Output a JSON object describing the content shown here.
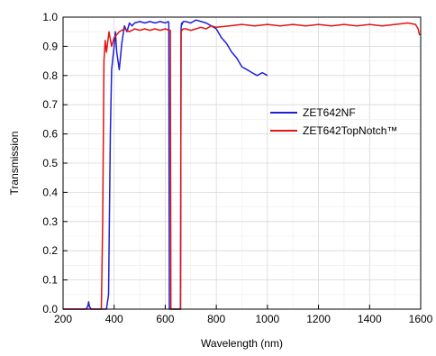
{
  "chart_data": {
    "type": "line",
    "xlabel": "Wavelength (nm)",
    "ylabel": "Transmission",
    "xlim": [
      200,
      1600
    ],
    "ylim": [
      0.0,
      1.0
    ],
    "xticks": [
      200,
      400,
      600,
      800,
      1000,
      1200,
      1400,
      1600
    ],
    "xtick_labels": [
      "200",
      "400",
      "600",
      "800",
      "1000",
      "1200",
      "1400",
      "1600"
    ],
    "yticks": [
      0.0,
      0.1,
      0.2,
      0.3,
      0.4,
      0.5,
      0.6,
      0.7,
      0.8,
      0.9,
      1.0
    ],
    "ytick_labels": [
      "0.0",
      "0.1",
      "0.2",
      "0.3",
      "0.4",
      "0.5",
      "0.6",
      "0.7",
      "0.8",
      "0.9",
      "1.0"
    ],
    "grid": true,
    "legend_position": "center-right",
    "series": [
      {
        "name": "ZET642NF",
        "color": "#1f1fd6",
        "x": [
          200,
          290,
          297,
          300,
          303,
          310,
          370,
          378,
          385,
          390,
          395,
          400,
          405,
          410,
          420,
          430,
          440,
          450,
          460,
          470,
          480,
          500,
          520,
          540,
          560,
          580,
          600,
          612,
          614,
          616,
          618,
          620,
          622,
          624,
          626,
          628,
          630,
          632,
          634,
          636,
          638,
          640,
          642,
          644,
          646,
          648,
          650,
          652,
          654,
          656,
          658,
          660,
          662,
          664,
          666,
          670,
          680,
          700,
          720,
          740,
          760,
          780,
          800,
          820,
          840,
          860,
          880,
          900,
          920,
          940,
          960,
          980,
          1000
        ],
        "y": [
          0.0,
          0.0,
          0.01,
          0.025,
          0.01,
          0.0,
          0.0,
          0.05,
          0.6,
          0.82,
          0.86,
          0.9,
          0.95,
          0.88,
          0.82,
          0.91,
          0.97,
          0.95,
          0.98,
          0.97,
          0.98,
          0.985,
          0.98,
          0.985,
          0.98,
          0.985,
          0.98,
          0.985,
          0.98,
          0.0,
          0.0,
          0.0,
          0.0,
          0.0,
          0.0,
          0.0,
          0.0,
          0.0,
          0.0,
          0.0,
          0.0,
          0.0,
          0.0,
          0.0,
          0.0,
          0.0,
          0.0,
          0.0,
          0.0,
          0.0,
          0.0,
          0.0,
          0.96,
          0.98,
          0.975,
          0.985,
          0.985,
          0.98,
          0.99,
          0.985,
          0.98,
          0.97,
          0.96,
          0.93,
          0.91,
          0.88,
          0.86,
          0.83,
          0.82,
          0.81,
          0.8,
          0.81,
          0.8
        ]
      },
      {
        "name": "ZET642TopNotch™",
        "color": "#e01515",
        "x": [
          200,
          340,
          350,
          355,
          360,
          365,
          370,
          380,
          390,
          400,
          420,
          440,
          460,
          480,
          500,
          520,
          540,
          560,
          580,
          600,
          615,
          620,
          622,
          624,
          626,
          628,
          630,
          632,
          634,
          636,
          638,
          640,
          642,
          644,
          646,
          648,
          650,
          652,
          654,
          656,
          658,
          660,
          662,
          665,
          670,
          680,
          700,
          720,
          740,
          760,
          780,
          800,
          850,
          900,
          950,
          1000,
          1050,
          1100,
          1150,
          1200,
          1250,
          1300,
          1350,
          1400,
          1450,
          1500,
          1550,
          1580,
          1590,
          1595,
          1600
        ],
        "y": [
          0.0,
          0.0,
          0.0,
          0.3,
          0.85,
          0.92,
          0.88,
          0.95,
          0.9,
          0.93,
          0.95,
          0.96,
          0.95,
          0.96,
          0.955,
          0.96,
          0.955,
          0.96,
          0.955,
          0.96,
          0.955,
          0.955,
          0.0,
          0.0,
          0.0,
          0.0,
          0.0,
          0.0,
          0.0,
          0.0,
          0.0,
          0.0,
          0.0,
          0.0,
          0.0,
          0.0,
          0.0,
          0.0,
          0.0,
          0.0,
          0.0,
          0.0,
          0.95,
          0.955,
          0.96,
          0.96,
          0.955,
          0.96,
          0.965,
          0.96,
          0.97,
          0.965,
          0.97,
          0.975,
          0.97,
          0.975,
          0.97,
          0.975,
          0.97,
          0.975,
          0.97,
          0.975,
          0.97,
          0.975,
          0.97,
          0.975,
          0.98,
          0.975,
          0.96,
          0.94,
          0.94
        ]
      }
    ]
  }
}
